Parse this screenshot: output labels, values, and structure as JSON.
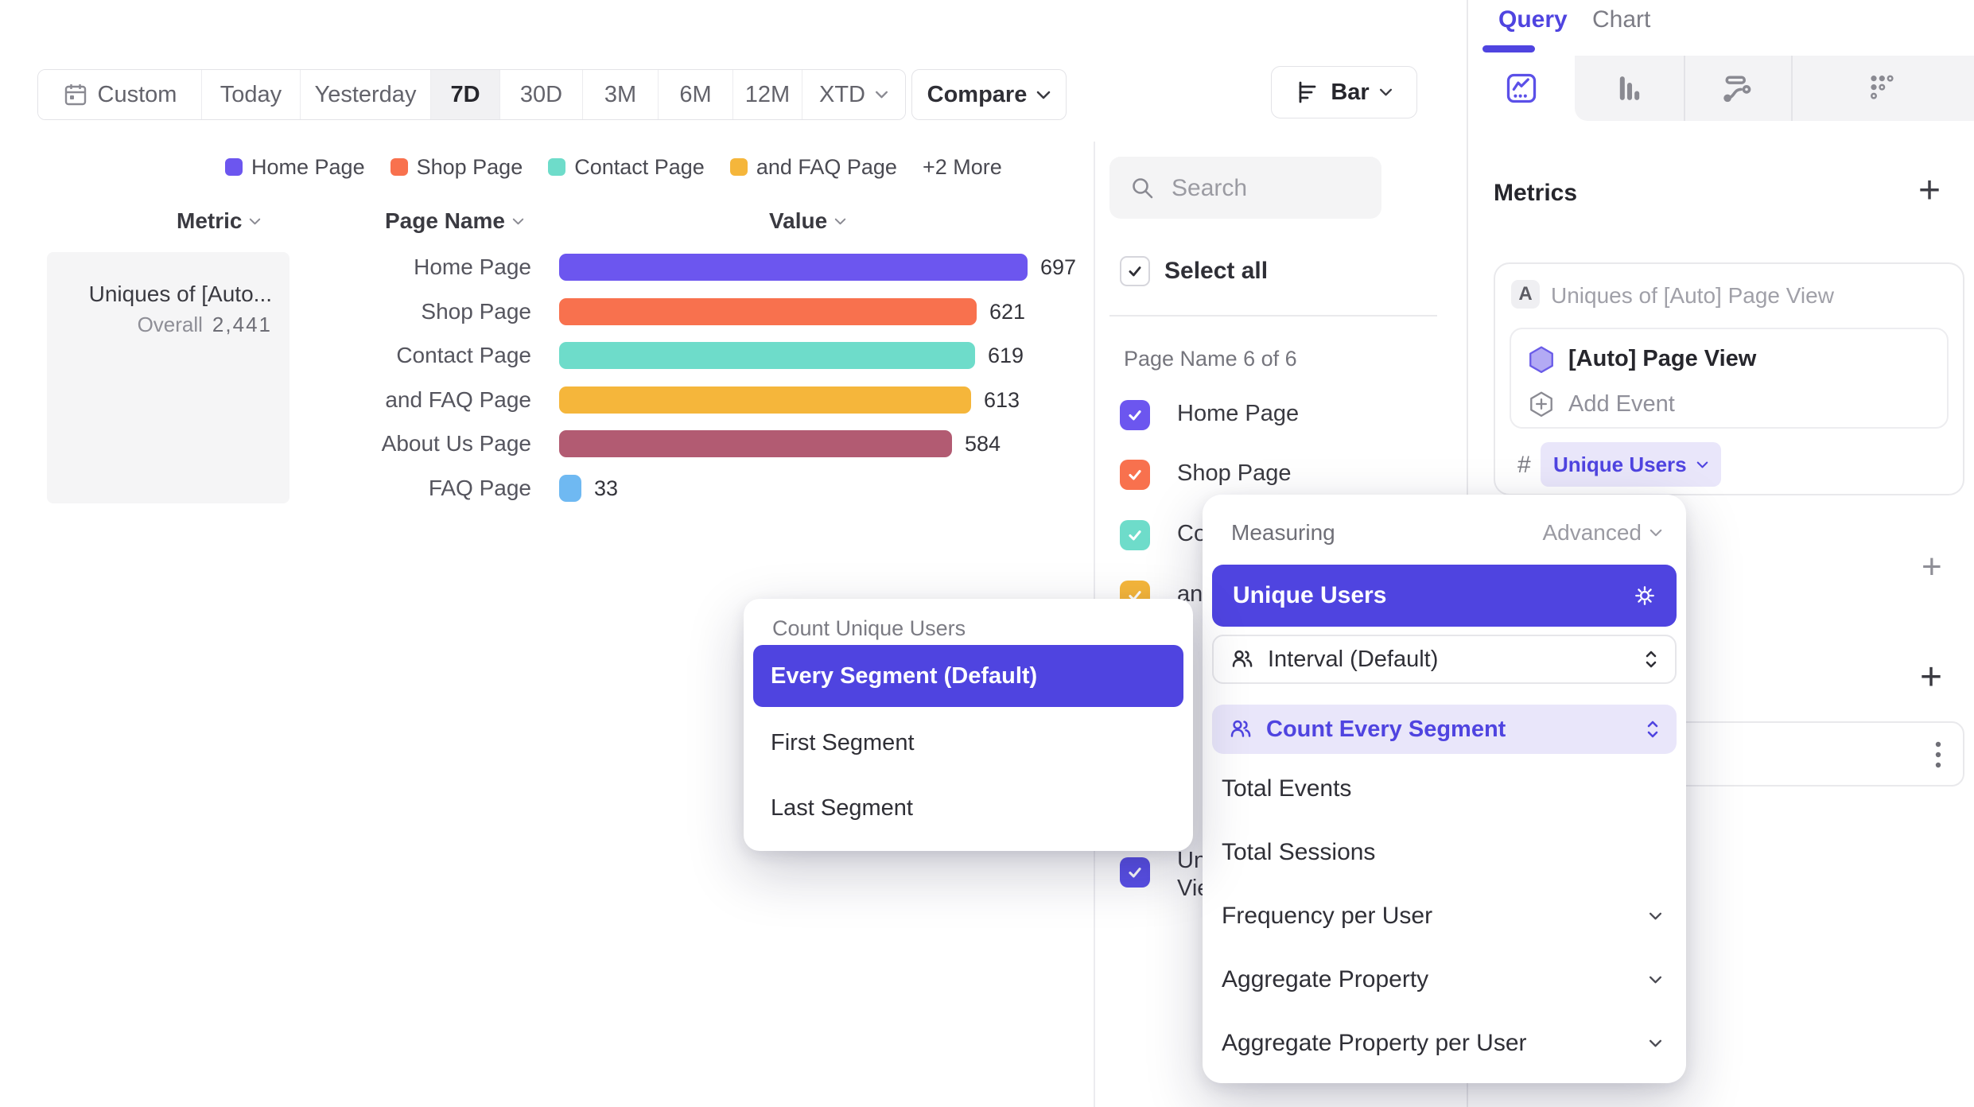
{
  "toolbar": {
    "date_ranges": [
      "Custom",
      "Today",
      "Yesterday",
      "7D",
      "30D",
      "3M",
      "6M",
      "12M",
      "XTD"
    ],
    "selected_range": "7D",
    "compare_label": "Compare"
  },
  "chart_controls": {
    "chart_type_label": "Bar"
  },
  "legend": {
    "items": [
      {
        "label": "Home Page",
        "color": "#6C56EF"
      },
      {
        "label": "Shop Page",
        "color": "#F8714E"
      },
      {
        "label": "Contact Page",
        "color": "#6EDCCA"
      },
      {
        "label": "and FAQ Page",
        "color": "#F5B63B"
      }
    ],
    "more_label": "+2 More"
  },
  "table": {
    "headers": [
      "Metric",
      "Page Name",
      "Value"
    ],
    "metric_cell": {
      "name": "Uniques of [Auto...",
      "overall_label": "Overall",
      "overall_value": "2,441"
    }
  },
  "chart_data": {
    "type": "bar",
    "orientation": "horizontal",
    "title": "",
    "categories": [
      "Home Page",
      "Shop Page",
      "Contact Page",
      "and FAQ Page",
      "About Us Page",
      "FAQ Page"
    ],
    "values": [
      697,
      621,
      619,
      613,
      584,
      33
    ],
    "colors": [
      "#6C56EF",
      "#F8714E",
      "#6EDCCA",
      "#F5B63B",
      "#B25B72",
      "#6FB9F2"
    ],
    "xlim": [
      0,
      697
    ],
    "value_labels": [
      "697",
      "621",
      "619",
      "613",
      "584",
      "33"
    ],
    "overall_total": "2,441",
    "legend_position": "top",
    "grid": false
  },
  "filter_panel": {
    "search_placeholder": "Search",
    "select_all_label": "Select all",
    "group_label": "Page Name 6 of 6",
    "items": [
      {
        "label": "Home Page",
        "color": "#6C56EF",
        "checked": true
      },
      {
        "label": "Shop Page",
        "color": "#F8714E",
        "checked": true
      },
      {
        "label": "Contact Page",
        "color": "#6EDCCA",
        "checked": true
      },
      {
        "label": "and FAQ Page",
        "color": "#F5B63B",
        "checked": true
      }
    ],
    "partial_item": {
      "label_lines": [
        "Uni",
        "Vie"
      ],
      "color": "#5A50E8",
      "checked": true
    }
  },
  "query_panel": {
    "tabs": [
      "Query",
      "Chart"
    ],
    "active_tab": "Query",
    "metrics_heading": "Metrics",
    "add_metric_label": "+",
    "metric_card": {
      "badge": "A",
      "title": "Uniques of [Auto] Page View",
      "event_label": "[Auto] Page View",
      "add_event_label": "Add Event",
      "measure_symbol": "#",
      "measure_chip_label": "Unique Users"
    },
    "add_filter_label": "+",
    "add_breakdown_label": "+"
  },
  "measuring_popup": {
    "title": "Measuring",
    "mode_label": "Advanced",
    "selected_label": "Unique Users",
    "controls": [
      {
        "label": "Interval (Default)",
        "active": false
      },
      {
        "label": "Count Every Segment",
        "active": true
      }
    ],
    "options": [
      {
        "label": "Total Events",
        "chevron": false
      },
      {
        "label": "Total Sessions",
        "chevron": false
      },
      {
        "label": "Frequency per User",
        "chevron": true
      },
      {
        "label": "Aggregate Property",
        "chevron": true
      },
      {
        "label": "Aggregate Property per User",
        "chevron": true
      }
    ]
  },
  "count_popup": {
    "title": "Count Unique Users",
    "selected_label": "Every Segment (Default)",
    "options": [
      "First Segment",
      "Last Segment"
    ]
  },
  "colors": {
    "accent": "#4F44E0",
    "chip_bg": "#E9E6FA",
    "selected_row_bg": "#E9E6FA",
    "panel_border": "#E9E9EC",
    "muted_text": "#8E8E96"
  }
}
